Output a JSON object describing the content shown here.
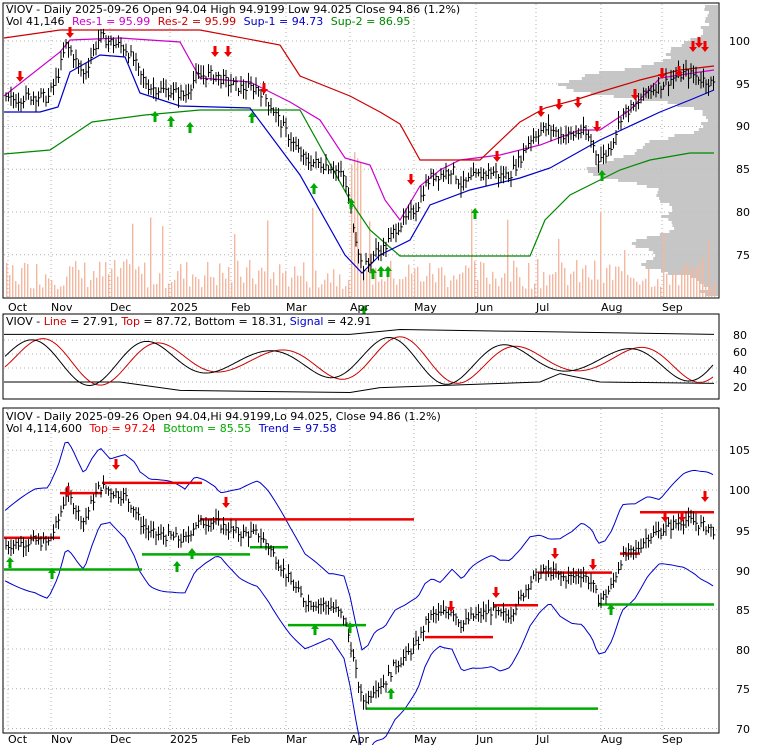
{
  "colors": {
    "background": "#ffffff",
    "frame": "#000000",
    "grid": "#b0b0b0",
    "price": "#000000",
    "volume_bar": "#f4b8a0",
    "volume_profile": "#c0c0c0",
    "resistance1": "#cc00cc",
    "resistance2": "#cc0000",
    "support1": "#0000cc",
    "support2": "#008800",
    "stoch_line": "#000000",
    "stoch_signal": "#cc0000",
    "stoch_envelope": "#000000",
    "trend_band": "#0000cc",
    "top_line": "#ee0000",
    "bottom_line": "#00aa00",
    "up_arrow": "#00aa00",
    "down_arrow": "#ee0000"
  },
  "chart_data": [
    {
      "type": "line",
      "panel": "price-resistance-support",
      "header": {
        "title": "VIOV - Daily 2025-09-26 Open 94.04  High 94.9199  Low 94.025  Close 94.86 (1.2%)",
        "vol_label": "Vol 41,146",
        "res1_label": "Res-1 = 95.99",
        "res2_label": "Res-2 = 95.99",
        "sup1_label": "Sup-1 = 94.73",
        "sup2_label": "Sup-2 = 86.95"
      },
      "months": [
        "Oct",
        "Nov",
        "Dec",
        "2025",
        "Feb",
        "Mar",
        "Apr",
        "May",
        "Jun",
        "Jul",
        "Aug",
        "Sep"
      ],
      "y_ticks": [
        "100",
        "95",
        "90",
        "85",
        "80",
        "75"
      ],
      "ylim": [
        71,
        101.5
      ],
      "grid": true,
      "volume_profile": true,
      "last_close": 94.86
    },
    {
      "type": "line",
      "panel": "stochastic",
      "header": {
        "title": "VIOV - Line = 27.91, Top = 87.72, Bottom = 18.31, Signal = 42.91"
      },
      "y_ticks": [
        "80",
        "60",
        "40",
        "20"
      ],
      "ylim": [
        0,
        100
      ],
      "line_last": 27.91,
      "top_last": 87.72,
      "bottom_last": 18.31,
      "signal_last": 42.91
    },
    {
      "type": "line",
      "panel": "trend",
      "header": {
        "title": "VIOV - Daily 2025-09-26 Open 94.04,Hi 94.9199,Lo 94.025, Close 94.86 (1.2%)",
        "vol_label": "Vol 4,114,600",
        "top_label": "Top = 97.24",
        "bottom_label": "Bottom = 85.55",
        "trend_label": "Trend = 97.58"
      },
      "months": [
        "Oct",
        "Nov",
        "Dec",
        "2025",
        "Feb",
        "Mar",
        "Apr",
        "May",
        "Jun",
        "Jul",
        "Aug",
        "Sep"
      ],
      "y_ticks": [
        "105",
        "100",
        "95",
        "90",
        "85",
        "80",
        "75",
        "70"
      ],
      "ylim": [
        69,
        107
      ],
      "grid": true
    }
  ]
}
